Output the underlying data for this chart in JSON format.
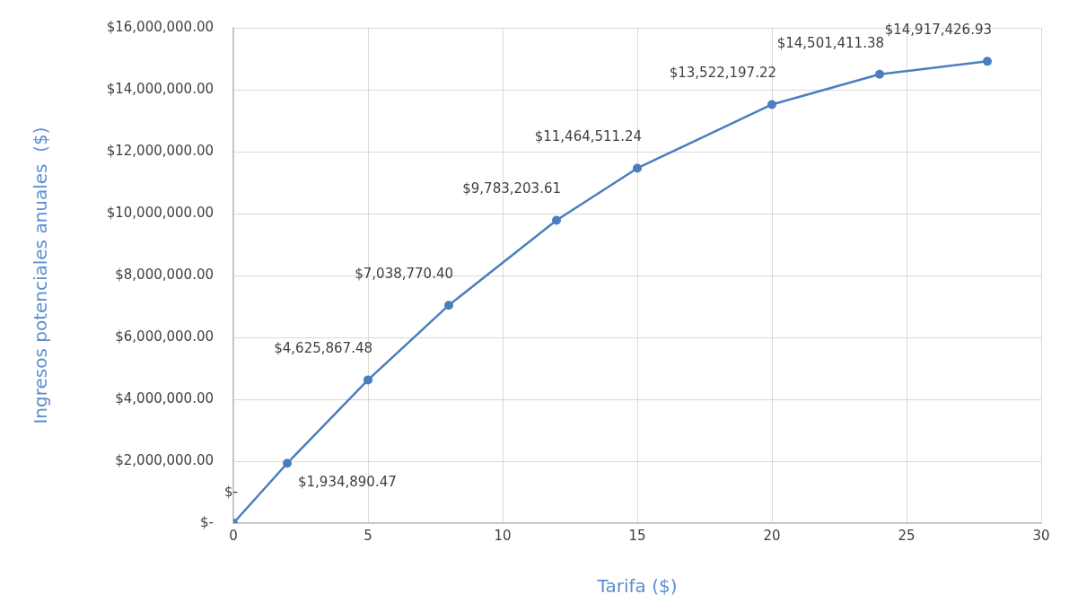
{
  "chart_data": {
    "type": "line",
    "xlabel": "Tarifa ($)",
    "ylabel": "Ingresos potenciales anuales  ($)",
    "x": [
      0,
      2,
      5,
      8,
      12,
      15,
      20,
      24,
      28
    ],
    "values": [
      0,
      1934890.47,
      4625867.48,
      7038770.4,
      9783203.61,
      11464511.24,
      13522197.22,
      14501411.38,
      14917426.93
    ],
    "value_labels": [
      "$-",
      "$1,934,890.47",
      "$4,625,867.48",
      "$7,038,770.40",
      "$9,783,203.61",
      "$11,464,511.24",
      "$13,522,197.22",
      "$14,501,411.38",
      "$14,917,426.93"
    ],
    "color": "#4a7ebf",
    "xlim": [
      0,
      30
    ],
    "xticks": [
      0,
      5,
      10,
      15,
      20,
      25,
      30
    ],
    "ylim": [
      0,
      16000000
    ],
    "yticks": [
      {
        "value": 0,
        "label": "$-"
      },
      {
        "value": 2000000,
        "label": "$2,000,000.00"
      },
      {
        "value": 4000000,
        "label": "$4,000,000.00"
      },
      {
        "value": 6000000,
        "label": "$6,000,000.00"
      },
      {
        "value": 8000000,
        "label": "$8,000,000.00"
      },
      {
        "value": 10000000,
        "label": "$10,000,000.00"
      },
      {
        "value": 12000000,
        "label": "$12,000,000.00"
      },
      {
        "value": 14000000,
        "label": "$14,000,000.00"
      },
      {
        "value": 16000000,
        "label": "$16,000,000.00"
      }
    ],
    "grid": true,
    "marker": "circle",
    "line_style": "solid"
  }
}
